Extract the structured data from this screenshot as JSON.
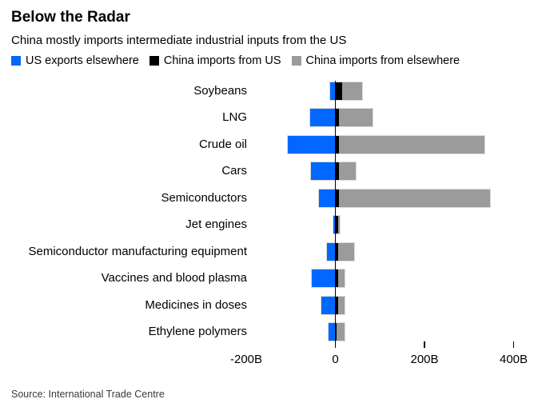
{
  "header": {
    "title": "Below the Radar",
    "subtitle": "China mostly imports intermediate industrial inputs from the US"
  },
  "legend": [
    {
      "label": "US exports elsewhere",
      "color": "#0068ff"
    },
    {
      "label": "China imports from US",
      "color": "#000000"
    },
    {
      "label": "China imports from elsewhere",
      "color": "#9b9b9b"
    }
  ],
  "chart_data": {
    "type": "bar",
    "orientation": "horizontal",
    "unit": "billions of US dollars",
    "title": "Below the Radar",
    "subtitle": "China mostly imports intermediate industrial inputs from the US",
    "categories": [
      "Soybeans",
      "LNG",
      "Crude oil",
      "Cars",
      "Semiconductors",
      "Jet engines",
      "Semiconductor manufacturing equipment",
      "Vaccines and blood plasma",
      "Medicines in doses",
      "Ethylene polymers"
    ],
    "series": [
      {
        "name": "US exports elsewhere",
        "color": "#0068ff",
        "direction": "left-of-zero",
        "values": [
          12,
          56,
          107,
          54,
          36,
          5,
          19,
          53,
          32,
          15
        ]
      },
      {
        "name": "China imports from US",
        "color": "#000000",
        "direction": "right-of-zero",
        "values": [
          15,
          8,
          8,
          8,
          8,
          6,
          6,
          6,
          6,
          3
        ]
      },
      {
        "name": "China imports from elsewhere",
        "color": "#9b9b9b",
        "direction": "stacked-after-black",
        "values": [
          45,
          76,
          327,
          38,
          340,
          4,
          36,
          14,
          14,
          18
        ]
      }
    ],
    "x_axis": {
      "tick_labels": [
        "-200B",
        "0",
        "200B",
        "400B"
      ],
      "tick_values": [
        -200,
        0,
        200,
        400
      ],
      "tick_marks_at": [
        200,
        400
      ],
      "range": [
        -230,
        460
      ],
      "gridlines": false
    },
    "legend_position": "top"
  },
  "footer": {
    "source": "Source: International Trade Centre"
  }
}
